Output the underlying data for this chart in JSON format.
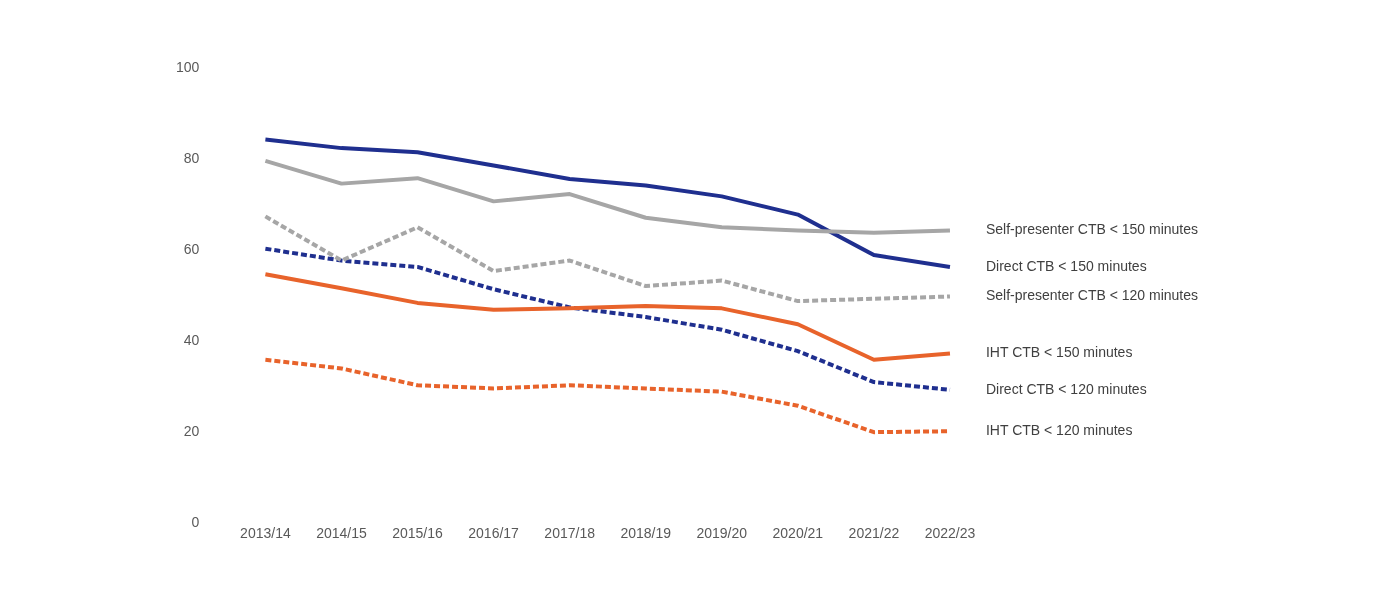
{
  "chart_data": {
    "type": "line",
    "categories": [
      "2013/14",
      "2014/15",
      "2015/16",
      "2016/17",
      "2017/18",
      "2018/19",
      "2019/20",
      "2020/21",
      "2021/22",
      "2022/23"
    ],
    "ylim": [
      0,
      100
    ],
    "yticks": [
      0,
      20,
      40,
      60,
      80,
      100
    ],
    "grid": false,
    "legend": "right",
    "marker": "none",
    "series": [
      {
        "name": "Self-presenter CTB < 150 minutes",
        "color": "#a6a6a6",
        "line_style": "solid",
        "values": [
          79.6,
          74.6,
          75.8,
          70.7,
          72.3,
          67.1,
          65,
          64.3,
          63.8,
          64.3
        ]
      },
      {
        "name": "Direct CTB < 150 minutes",
        "color": "#1f2f8f",
        "line_style": "solid",
        "values": [
          84.3,
          82.4,
          81.5,
          78.6,
          75.6,
          74.2,
          71.8,
          67.8,
          58.9,
          56.3
        ]
      },
      {
        "name": "Self-presenter CTB < 120 minutes",
        "color": "#a6a6a6",
        "line_style": "dashed",
        "values": [
          67.4,
          57.7,
          65,
          55.4,
          57.7,
          52.1,
          53.3,
          48.8,
          49.3,
          49.8
        ]
      },
      {
        "name": "IHT CTB < 150 minutes",
        "color": "#e8632b",
        "line_style": "solid",
        "values": [
          54.7,
          51.6,
          48.4,
          46.9,
          47.2,
          47.7,
          47.2,
          43.7,
          35.9,
          37.3
        ]
      },
      {
        "name": "Direct CTB < 120 minutes",
        "color": "#1f2f8f",
        "line_style": "dashed",
        "values": [
          60.3,
          57.7,
          56.3,
          51.4,
          47.4,
          45.3,
          42.5,
          37.8,
          31,
          29.3
        ]
      },
      {
        "name": "IHT CTB < 120 minutes",
        "color": "#e8632b",
        "line_style": "dashed",
        "values": [
          35.9,
          34,
          30.3,
          29.6,
          30.3,
          29.6,
          28.9,
          25.8,
          20,
          20.2
        ]
      }
    ]
  }
}
